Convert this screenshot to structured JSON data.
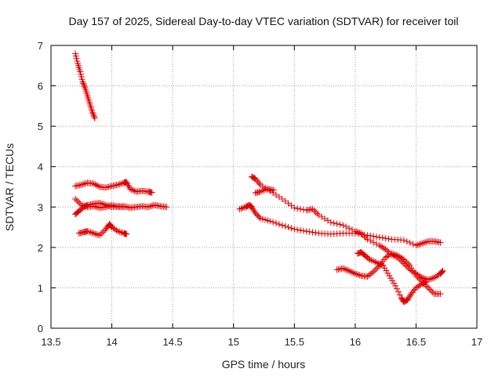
{
  "chart_data": {
    "type": "scatter",
    "title": "Day 157 of 2025, Sidereal Day-to-day VTEC variation (SDTVAR) for receiver toil",
    "xlabel": "GPS time / hours",
    "ylabel": "SDTVAR / TECUs",
    "xlim": [
      13.5,
      17
    ],
    "ylim": [
      0,
      7
    ],
    "xticks": [
      "13.5",
      "14",
      "14.5",
      "15",
      "15.5",
      "16",
      "16.5",
      "17"
    ],
    "yticks": [
      "0",
      "1",
      "2",
      "3",
      "4",
      "5",
      "6",
      "7"
    ],
    "grid": true,
    "marker": "+",
    "marker_color": "#e00000",
    "series": [
      {
        "name": "s1",
        "points": [
          [
            13.7,
            6.8
          ],
          [
            13.72,
            6.55
          ],
          [
            13.74,
            6.35
          ],
          [
            13.76,
            6.1
          ],
          [
            13.78,
            5.95
          ],
          [
            13.8,
            5.75
          ],
          [
            13.82,
            5.55
          ],
          [
            13.84,
            5.35
          ],
          [
            13.86,
            5.2
          ]
        ]
      },
      {
        "name": "s2",
        "points": [
          [
            13.7,
            3.52
          ],
          [
            13.75,
            3.55
          ],
          [
            13.8,
            3.6
          ],
          [
            13.85,
            3.58
          ],
          [
            13.9,
            3.5
          ],
          [
            13.95,
            3.48
          ],
          [
            14.0,
            3.52
          ],
          [
            14.05,
            3.55
          ],
          [
            14.1,
            3.6
          ],
          [
            14.12,
            3.62
          ],
          [
            14.15,
            3.45
          ],
          [
            14.2,
            3.38
          ],
          [
            14.25,
            3.4
          ],
          [
            14.3,
            3.38
          ],
          [
            14.33,
            3.36
          ]
        ]
      },
      {
        "name": "s3",
        "points": [
          [
            13.7,
            3.2
          ],
          [
            13.75,
            3.05
          ],
          [
            13.8,
            3.0
          ],
          [
            13.85,
            3.02
          ],
          [
            13.9,
            2.98
          ],
          [
            13.95,
            3.0
          ],
          [
            14.0,
            3.05
          ],
          [
            14.05,
            3.0
          ],
          [
            14.1,
            3.02
          ],
          [
            14.15,
            2.98
          ],
          [
            14.2,
            3.0
          ],
          [
            14.25,
            3.02
          ],
          [
            14.3,
            3.0
          ],
          [
            14.35,
            3.05
          ],
          [
            14.4,
            3.02
          ],
          [
            14.45,
            3.0
          ]
        ]
      },
      {
        "name": "s4",
        "points": [
          [
            13.7,
            2.82
          ],
          [
            13.73,
            2.9
          ],
          [
            13.77,
            3.0
          ],
          [
            13.8,
            3.05
          ],
          [
            13.85,
            3.08
          ],
          [
            13.9,
            3.1
          ],
          [
            13.95,
            3.05
          ],
          [
            14.0,
            3.0
          ],
          [
            14.05,
            3.02
          ],
          [
            14.1,
            3.0
          ]
        ]
      },
      {
        "name": "s5",
        "points": [
          [
            13.73,
            2.35
          ],
          [
            13.77,
            2.38
          ],
          [
            13.8,
            2.4
          ],
          [
            13.85,
            2.35
          ],
          [
            13.9,
            2.3
          ],
          [
            13.95,
            2.45
          ],
          [
            13.98,
            2.58
          ],
          [
            14.0,
            2.5
          ],
          [
            14.05,
            2.4
          ],
          [
            14.1,
            2.35
          ],
          [
            14.12,
            2.33
          ]
        ]
      },
      {
        "name": "s6",
        "points": [
          [
            15.05,
            2.95
          ],
          [
            15.1,
            3.0
          ],
          [
            15.13,
            3.05
          ],
          [
            15.15,
            3.0
          ],
          [
            15.18,
            2.85
          ],
          [
            15.22,
            2.72
          ],
          [
            15.3,
            2.65
          ],
          [
            15.4,
            2.55
          ],
          [
            15.5,
            2.45
          ],
          [
            15.6,
            2.4
          ],
          [
            15.7,
            2.35
          ],
          [
            15.8,
            2.33
          ],
          [
            15.9,
            2.35
          ],
          [
            16.0,
            2.35
          ],
          [
            16.1,
            2.3
          ],
          [
            16.2,
            2.25
          ],
          [
            16.3,
            2.2
          ],
          [
            16.4,
            2.18
          ],
          [
            16.5,
            2.05
          ],
          [
            16.55,
            2.1
          ],
          [
            16.6,
            2.15
          ],
          [
            16.65,
            2.15
          ],
          [
            16.7,
            2.12
          ]
        ]
      },
      {
        "name": "s7",
        "points": [
          [
            15.15,
            3.75
          ],
          [
            15.18,
            3.7
          ],
          [
            15.22,
            3.55
          ],
          [
            15.3,
            3.4
          ],
          [
            15.4,
            3.2
          ],
          [
            15.5,
            2.98
          ],
          [
            15.6,
            2.92
          ],
          [
            15.65,
            2.95
          ],
          [
            15.7,
            2.8
          ],
          [
            15.8,
            2.62
          ],
          [
            15.9,
            2.55
          ],
          [
            16.0,
            2.4
          ],
          [
            16.05,
            2.35
          ],
          [
            16.1,
            2.2
          ],
          [
            16.2,
            2.05
          ],
          [
            16.25,
            1.95
          ],
          [
            16.3,
            1.82
          ],
          [
            16.35,
            1.75
          ],
          [
            16.4,
            1.6
          ],
          [
            16.45,
            1.45
          ],
          [
            16.5,
            1.35
          ],
          [
            16.55,
            1.25
          ],
          [
            16.6,
            1.2
          ],
          [
            16.65,
            1.25
          ],
          [
            16.7,
            1.35
          ],
          [
            16.72,
            1.42
          ]
        ]
      },
      {
        "name": "s8",
        "points": [
          [
            15.18,
            3.35
          ],
          [
            15.22,
            3.38
          ],
          [
            15.28,
            3.45
          ],
          [
            15.33,
            3.42
          ]
        ]
      },
      {
        "name": "s9",
        "points": [
          [
            15.85,
            1.45
          ],
          [
            15.9,
            1.48
          ],
          [
            15.95,
            1.42
          ],
          [
            16.0,
            1.35
          ],
          [
            16.05,
            1.3
          ],
          [
            16.1,
            1.28
          ],
          [
            16.15,
            1.4
          ],
          [
            16.2,
            1.55
          ],
          [
            16.25,
            1.75
          ],
          [
            16.3,
            1.85
          ],
          [
            16.35,
            1.8
          ],
          [
            16.4,
            1.7
          ],
          [
            16.45,
            1.55
          ],
          [
            16.5,
            1.3
          ],
          [
            16.55,
            1.15
          ],
          [
            16.6,
            1.0
          ],
          [
            16.65,
            0.85
          ],
          [
            16.7,
            0.85
          ]
        ]
      },
      {
        "name": "s10",
        "points": [
          [
            16.02,
            1.85
          ],
          [
            16.05,
            1.88
          ],
          [
            16.08,
            1.8
          ],
          [
            16.12,
            1.7
          ],
          [
            16.18,
            1.62
          ],
          [
            16.23,
            1.55
          ],
          [
            16.28,
            1.3
          ],
          [
            16.33,
            1.05
          ],
          [
            16.38,
            0.75
          ],
          [
            16.4,
            0.65
          ],
          [
            16.43,
            0.7
          ],
          [
            16.46,
            0.85
          ],
          [
            16.5,
            1.0
          ],
          [
            16.55,
            1.1
          ],
          [
            16.58,
            1.15
          ]
        ]
      }
    ]
  }
}
